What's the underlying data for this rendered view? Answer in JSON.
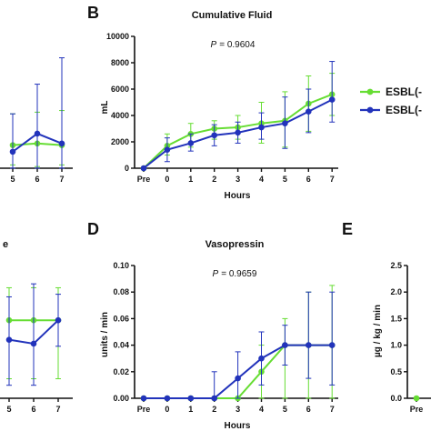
{
  "colors": {
    "esbl_pos": "#66dd33",
    "esbl_neg": "#2233bb",
    "axis": "#111111"
  },
  "legend": {
    "items": [
      "ESBL(-",
      "ESBL(-"
    ]
  },
  "chart_data": [
    {
      "id": "A-partial",
      "type": "line",
      "x": [
        "5",
        "6",
        "7"
      ],
      "series": [
        {
          "values": [
            1400,
            1500,
            1400
          ],
          "err_hi": [
            3300,
            3400,
            3500
          ],
          "err_lo": [
            200,
            100,
            200
          ]
        },
        {
          "values": [
            1000,
            2100,
            1500
          ],
          "err_hi": [
            3300,
            5100,
            6700
          ],
          "err_lo": [
            0,
            0,
            0
          ]
        }
      ],
      "ylim": [
        0,
        8000
      ],
      "xlabel": "",
      "ylabel": "",
      "title": ""
    },
    {
      "id": "B",
      "panel": "B",
      "type": "line",
      "title": "Cumulative Fluid",
      "annotation": "= 0.9604",
      "annotation_italic": "P",
      "xlabel": "Hours",
      "ylabel": "mL",
      "x": [
        "Pre",
        "0",
        "1",
        "2",
        "3",
        "4",
        "5",
        "6",
        "7"
      ],
      "yticks": [
        "0",
        "2000",
        "4000",
        "6000",
        "8000",
        "10000"
      ],
      "ylim": [
        0,
        10000
      ],
      "series": [
        {
          "values": [
            0,
            1700,
            2600,
            3000,
            3100,
            3400,
            3600,
            4900,
            5600
          ],
          "err_hi": [
            0,
            2600,
            3400,
            3600,
            4000,
            5000,
            5800,
            7000,
            7200
          ],
          "err_lo": [
            0,
            1000,
            1600,
            2200,
            2200,
            1900,
            1600,
            2800,
            4000
          ]
        },
        {
          "values": [
            0,
            1400,
            1900,
            2500,
            2700,
            3100,
            3400,
            4300,
            5200
          ],
          "err_hi": [
            0,
            2300,
            2600,
            3300,
            3500,
            4200,
            5400,
            6000,
            8100
          ],
          "err_lo": [
            0,
            500,
            1300,
            1700,
            1900,
            2200,
            1500,
            2700,
            3500
          ]
        }
      ]
    },
    {
      "id": "C-partial",
      "type": "line",
      "x": [
        "5",
        "6",
        "7"
      ],
      "series": [
        {
          "values": [
            0.6,
            0.6,
            0.6
          ],
          "err_hi": [
            0.85,
            0.85,
            0.85
          ],
          "err_lo": [
            0.15,
            0.15,
            0.15
          ]
        },
        {
          "values": [
            0.45,
            0.42,
            0.6
          ],
          "err_hi": [
            0.78,
            0.88,
            0.8
          ],
          "err_lo": [
            0.1,
            0.1,
            0.4
          ]
        }
      ],
      "ylim": [
        0,
        1.0
      ],
      "partial_title": "e",
      "xlabel": "",
      "ylabel": ""
    },
    {
      "id": "D",
      "panel": "D",
      "type": "line",
      "title": "Vasopressin",
      "annotation": "= 0.9659",
      "annotation_italic": "P",
      "xlabel": "Hours",
      "ylabel": "units / min",
      "x": [
        "Pre",
        "0",
        "1",
        "2",
        "3",
        "4",
        "5",
        "6",
        "7"
      ],
      "yticks": [
        "0.00",
        "0.02",
        "0.04",
        "0.06",
        "0.08",
        "0.10"
      ],
      "ylim": [
        0,
        0.1
      ],
      "series": [
        {
          "values": [
            0,
            0,
            0,
            0,
            0,
            0.02,
            0.04,
            0.04,
            0.04
          ],
          "err_hi": [
            0,
            0,
            0,
            0,
            0,
            0.04,
            0.06,
            0.08,
            0.085
          ],
          "err_lo": [
            0,
            0,
            0,
            0,
            0,
            0,
            0,
            0,
            0
          ]
        },
        {
          "values": [
            0,
            0,
            0,
            0,
            0.015,
            0.03,
            0.04,
            0.04,
            0.04
          ],
          "err_hi": [
            0,
            0,
            0,
            0.02,
            0.035,
            0.05,
            0.055,
            0.08,
            0.08
          ],
          "err_lo": [
            0,
            0,
            0,
            0,
            0,
            0.01,
            0.025,
            0.015,
            0.01
          ]
        }
      ]
    },
    {
      "id": "E-partial",
      "panel": "E",
      "type": "line",
      "ylabel": "µg / kg / min",
      "yticks": [
        "0.0",
        "0.5",
        "1.0",
        "1.5",
        "2.0",
        "2.5"
      ],
      "ylim": [
        0,
        2.5
      ],
      "x": [
        "Pre"
      ],
      "series": [
        {
          "values": [
            0
          ]
        }
      ]
    }
  ]
}
